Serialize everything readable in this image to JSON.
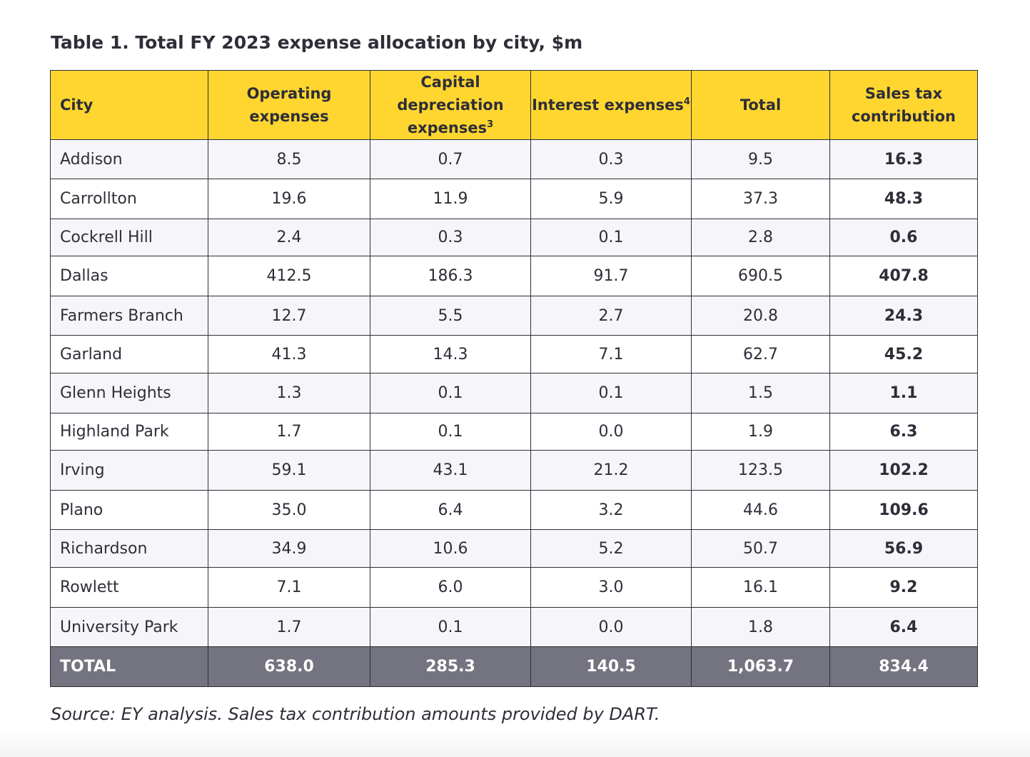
{
  "title": "Table 1. Total FY 2023 expense allocation by city, $m",
  "headers": {
    "city": "City",
    "operating": "Operating expenses",
    "capital": "Capital depreciation expenses",
    "capital_note": "3",
    "interest": "Interest expenses",
    "interest_note": "4",
    "total": "Total",
    "sales_tax": "Sales tax contribution"
  },
  "rows": [
    {
      "city": "Addison",
      "operating": "8.5",
      "capital": "0.7",
      "interest": "0.3",
      "total": "9.5",
      "sales_tax": "16.3"
    },
    {
      "city": "Carrollton",
      "operating": "19.6",
      "capital": "11.9",
      "interest": "5.9",
      "total": "37.3",
      "sales_tax": "48.3"
    },
    {
      "city": "Cockrell Hill",
      "operating": "2.4",
      "capital": "0.3",
      "interest": "0.1",
      "total": "2.8",
      "sales_tax": "0.6"
    },
    {
      "city": "Dallas",
      "operating": "412.5",
      "capital": "186.3",
      "interest": "91.7",
      "total": "690.5",
      "sales_tax": "407.8"
    },
    {
      "city": "Farmers Branch",
      "operating": "12.7",
      "capital": "5.5",
      "interest": "2.7",
      "total": "20.8",
      "sales_tax": "24.3"
    },
    {
      "city": "Garland",
      "operating": "41.3",
      "capital": "14.3",
      "interest": "7.1",
      "total": "62.7",
      "sales_tax": "45.2"
    },
    {
      "city": "Glenn Heights",
      "operating": "1.3",
      "capital": "0.1",
      "interest": "0.1",
      "total": "1.5",
      "sales_tax": "1.1"
    },
    {
      "city": "Highland Park",
      "operating": "1.7",
      "capital": "0.1",
      "interest": "0.0",
      "total": "1.9",
      "sales_tax": "6.3"
    },
    {
      "city": "Irving",
      "operating": "59.1",
      "capital": "43.1",
      "interest": "21.2",
      "total": "123.5",
      "sales_tax": "102.2"
    },
    {
      "city": "Plano",
      "operating": "35.0",
      "capital": "6.4",
      "interest": "3.2",
      "total": "44.6",
      "sales_tax": "109.6"
    },
    {
      "city": "Richardson",
      "operating": "34.9",
      "capital": "10.6",
      "interest": "5.2",
      "total": "50.7",
      "sales_tax": "56.9"
    },
    {
      "city": "Rowlett",
      "operating": "7.1",
      "capital": "6.0",
      "interest": "3.0",
      "total": "16.1",
      "sales_tax": "9.2"
    },
    {
      "city": "University Park",
      "operating": "1.7",
      "capital": "0.1",
      "interest": "0.0",
      "total": "1.8",
      "sales_tax": "6.4"
    }
  ],
  "totals": {
    "label": "TOTAL",
    "operating": "638.0",
    "capital": "285.3",
    "interest": "140.5",
    "total": "1,063.7",
    "sales_tax": "834.4"
  },
  "source": "Source: EY analysis. Sales tax contribution amounts provided by DART.",
  "colors": {
    "header_bg": "#ffd630",
    "total_row_bg": "#747480",
    "text": "#2e2e38",
    "alt_row_bg": "#f6f6fa"
  }
}
